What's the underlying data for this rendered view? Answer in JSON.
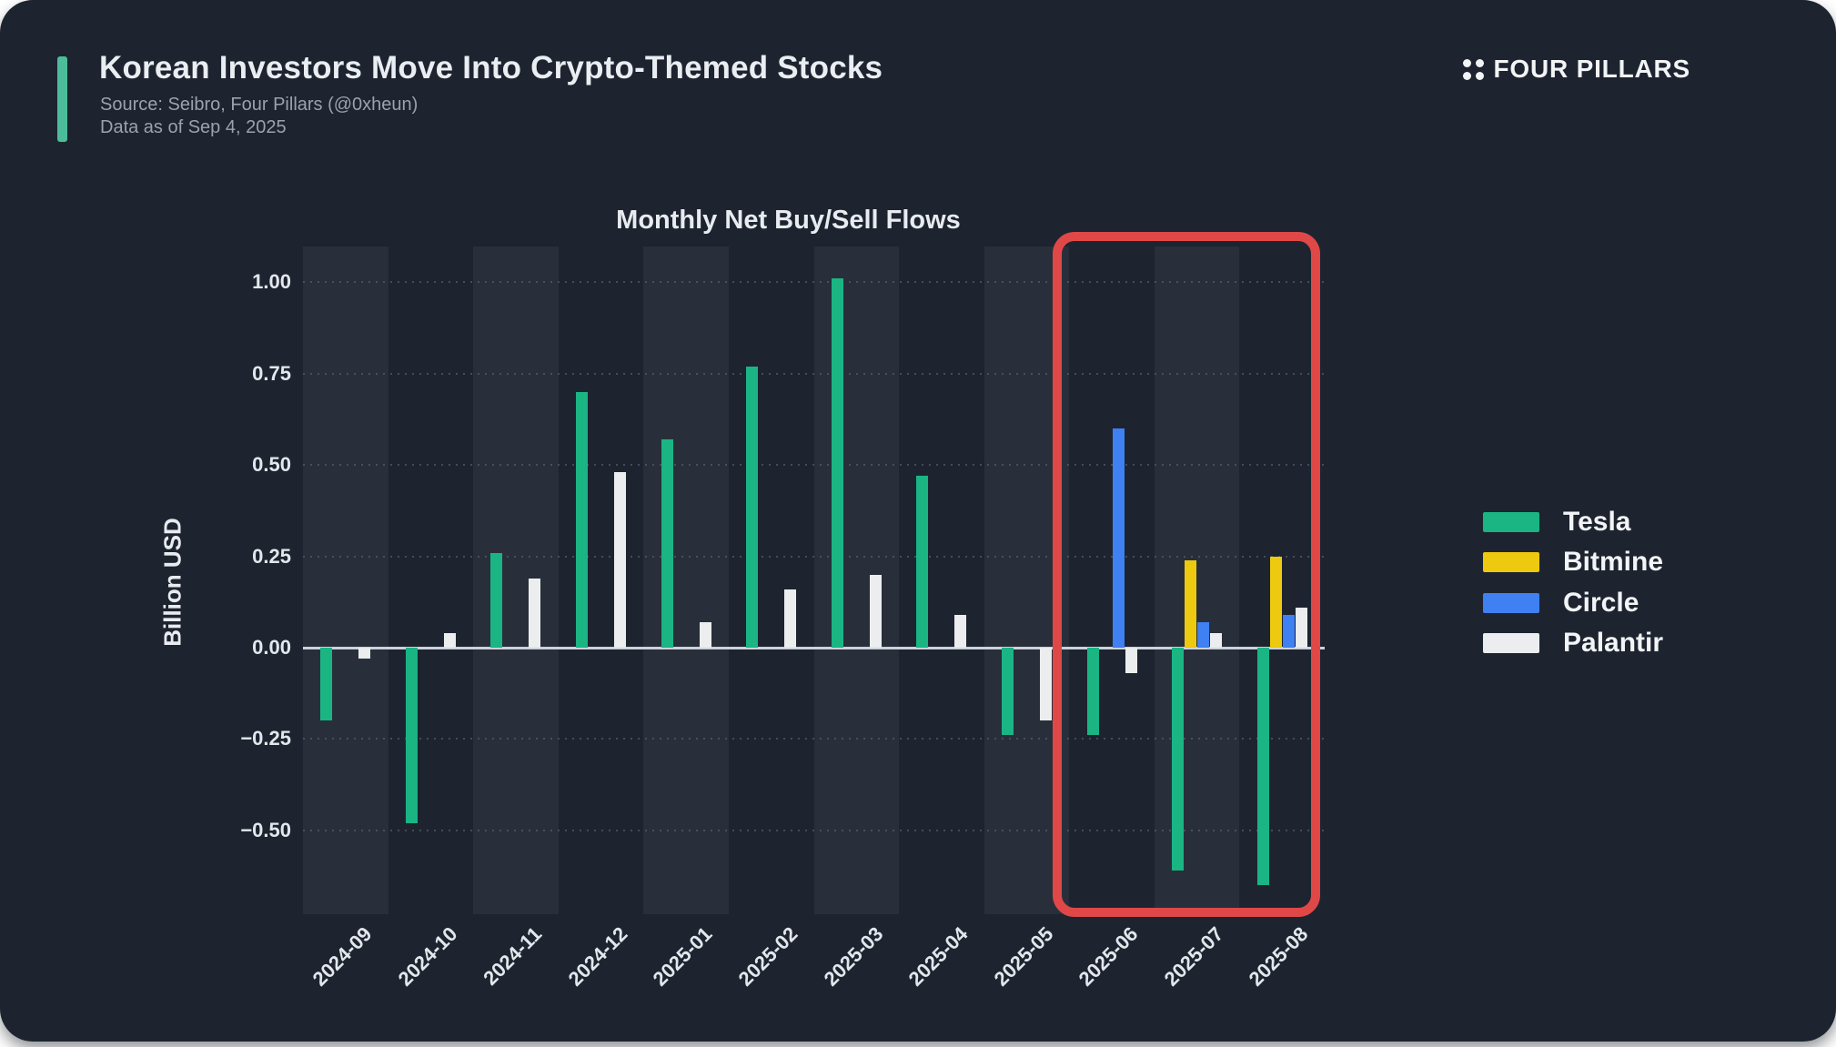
{
  "header": {
    "title": "Korean Investors Move Into Crypto-Themed Stocks",
    "source_line": "Source: Seibro, Four Pillars (@0xheun)",
    "data_as_of": "Data as of Sep 4, 2025",
    "brand": "FOUR PILLARS"
  },
  "chart_data": {
    "type": "bar",
    "title": "Monthly Net Buy/Sell Flows",
    "ylabel": "Billion USD",
    "categories": [
      "2024-09",
      "2024-10",
      "2024-11",
      "2024-12",
      "2025-01",
      "2025-02",
      "2025-03",
      "2025-04",
      "2025-05",
      "2025-06",
      "2025-07",
      "2025-08"
    ],
    "series": [
      {
        "name": "Tesla",
        "color": "#1ab583",
        "values": [
          -0.2,
          -0.48,
          0.26,
          0.7,
          0.57,
          0.77,
          1.01,
          0.47,
          -0.24,
          -0.24,
          -0.61,
          -0.65
        ]
      },
      {
        "name": "Bitmine",
        "color": "#edc90f",
        "values": [
          null,
          null,
          null,
          null,
          null,
          null,
          null,
          null,
          null,
          null,
          0.24,
          0.25
        ]
      },
      {
        "name": "Circle",
        "color": "#3f80f2",
        "values": [
          null,
          null,
          null,
          null,
          null,
          null,
          null,
          null,
          null,
          0.6,
          0.07,
          0.09
        ]
      },
      {
        "name": "Palantir",
        "color": "#ebedee",
        "values": [
          -0.03,
          0.04,
          0.19,
          0.48,
          0.07,
          0.16,
          0.2,
          0.09,
          -0.2,
          -0.07,
          0.04,
          0.11
        ]
      }
    ],
    "yticks": [
      1.0,
      0.75,
      0.5,
      0.25,
      0.0,
      -0.25,
      -0.5
    ],
    "ylim": [
      -0.73,
      1.1
    ],
    "grid": "dotted-horizontal",
    "legend_position": "right",
    "highlight": {
      "months": [
        "2025-06",
        "2025-07",
        "2025-08"
      ],
      "color": "#e04848"
    }
  }
}
